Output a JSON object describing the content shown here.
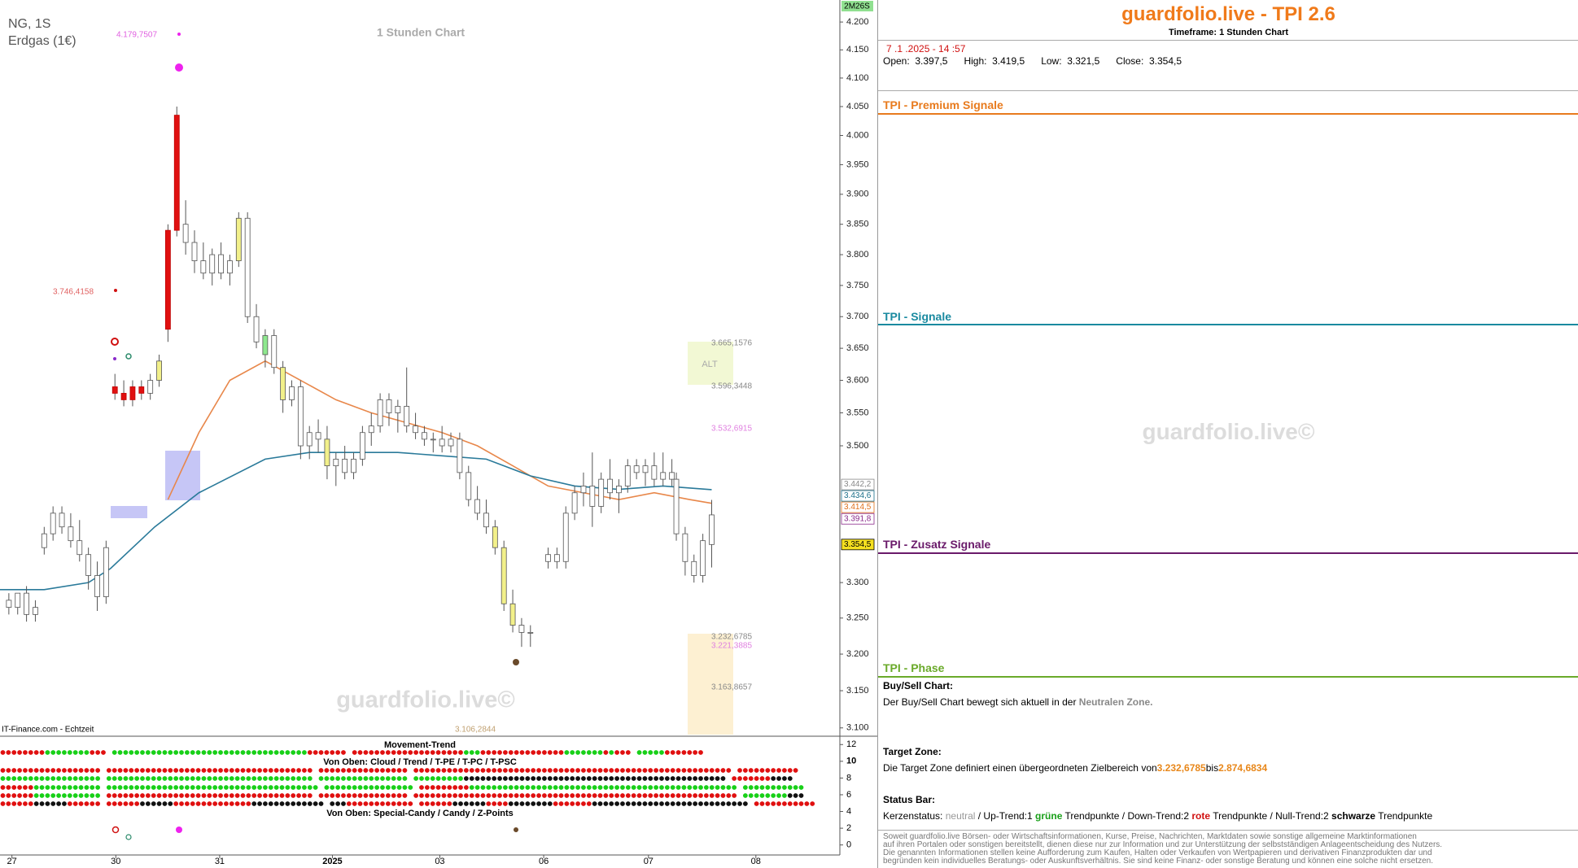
{
  "chart_data": {
    "type": "candlestick",
    "timer": "2M26S",
    "texts": [
      "NG, 1S",
      "Erdgas (1€)",
      "1 Stunden Chart",
      "4.179,7507",
      "3.746,4158",
      "3.665,1576",
      "ALT",
      "3.596,3448",
      "3.532,6915",
      "3.232,6785",
      "3.221,3885",
      "3.163,8657",
      "3.106,2844",
      "guardfolio.live©",
      "IT-Finance.com - Echtzeit"
    ],
    "log_scale": true,
    "xlim": [
      0,
      190
    ],
    "ylim": [
      3.09,
      4.24
    ],
    "xticks": [
      {
        "value": 2.7,
        "label": "27"
      },
      {
        "value": 26.2,
        "label": "30"
      },
      {
        "value": 49.7,
        "label": "31"
      },
      {
        "value": 75.2,
        "label": "2025"
      },
      {
        "value": 99.5,
        "label": "03"
      },
      {
        "value": 123,
        "label": "06"
      },
      {
        "value": 146.7,
        "label": "07"
      },
      {
        "value": 171,
        "label": "08"
      }
    ],
    "yticks": [
      {
        "value": 4.2,
        "label": "4.200"
      },
      {
        "value": 4.15,
        "label": "4.150"
      },
      {
        "value": 4.1,
        "label": "4.100"
      },
      {
        "value": 4.05,
        "label": "4.050"
      },
      {
        "value": 4.0,
        "label": "4.000"
      },
      {
        "value": 3.95,
        "label": "3.950"
      },
      {
        "value": 3.9,
        "label": "3.900"
      },
      {
        "value": 3.85,
        "label": "3.850"
      },
      {
        "value": 3.8,
        "label": "3.800"
      },
      {
        "value": 3.75,
        "label": "3.750"
      },
      {
        "value": 3.7,
        "label": "3.700"
      },
      {
        "value": 3.65,
        "label": "3.650"
      },
      {
        "value": 3.6,
        "label": "3.600"
      },
      {
        "value": 3.55,
        "label": "3.550"
      },
      {
        "value": 3.5,
        "label": "3.500"
      },
      {
        "value": 3.3,
        "label": "3.300"
      },
      {
        "value": 3.25,
        "label": "3.250"
      },
      {
        "value": 3.2,
        "label": "3.200"
      },
      {
        "value": 3.15,
        "label": "3.150"
      },
      {
        "value": 3.1,
        "label": "3.100"
      }
    ],
    "x": [
      2,
      4,
      6,
      8,
      10,
      12,
      14,
      16,
      18,
      20,
      22,
      24,
      26,
      28,
      30,
      32,
      34,
      36,
      38,
      40,
      42,
      44,
      46,
      48,
      50,
      52,
      54,
      56,
      58,
      60,
      62,
      64,
      66,
      68,
      70,
      72,
      74,
      76,
      78,
      80,
      82,
      84,
      86,
      88,
      90,
      92,
      94,
      96,
      98,
      100,
      102,
      104,
      106,
      108,
      110,
      112,
      114,
      116,
      118,
      120,
      124,
      126,
      128,
      130,
      132,
      134,
      136,
      138,
      140,
      142,
      144,
      146,
      148,
      150,
      152,
      153,
      155,
      157,
      159,
      161
    ],
    "open": [
      3.275,
      3.265,
      3.285,
      3.255,
      3.35,
      3.37,
      3.4,
      3.38,
      3.36,
      3.34,
      3.31,
      3.28,
      3.59,
      3.58,
      3.57,
      3.59,
      3.58,
      3.6,
      3.68,
      3.84,
      3.85,
      3.82,
      3.79,
      3.77,
      3.8,
      3.77,
      3.79,
      3.86,
      3.7,
      3.64,
      3.67,
      3.62,
      3.57,
      3.59,
      3.5,
      3.52,
      3.51,
      3.47,
      3.48,
      3.46,
      3.48,
      3.52,
      3.53,
      3.57,
      3.55,
      3.56,
      3.53,
      3.52,
      3.51,
      3.51,
      3.5,
      3.51,
      3.46,
      3.42,
      3.4,
      3.38,
      3.35,
      3.27,
      3.24,
      3.23,
      3.33,
      3.34,
      3.33,
      3.4,
      3.43,
      3.44,
      3.41,
      3.45,
      3.43,
      3.44,
      3.47,
      3.46,
      3.47,
      3.45,
      3.46,
      3.45,
      3.37,
      3.33,
      3.31,
      3.3975
    ],
    "high": [
      3.285,
      3.285,
      3.295,
      3.275,
      3.38,
      3.41,
      3.41,
      3.4,
      3.39,
      3.35,
      3.33,
      3.36,
      3.61,
      3.6,
      3.6,
      3.6,
      3.61,
      3.64,
      3.85,
      4.05,
      3.89,
      3.84,
      3.82,
      3.81,
      3.82,
      3.8,
      3.87,
      3.87,
      3.72,
      3.68,
      3.68,
      3.63,
      3.6,
      3.6,
      3.53,
      3.54,
      3.53,
      3.49,
      3.5,
      3.49,
      3.53,
      3.55,
      3.58,
      3.58,
      3.57,
      3.62,
      3.55,
      3.53,
      3.52,
      3.53,
      3.52,
      3.52,
      3.47,
      3.44,
      3.42,
      3.39,
      3.36,
      3.29,
      3.25,
      3.24,
      3.35,
      3.35,
      3.41,
      3.44,
      3.46,
      3.49,
      3.46,
      3.48,
      3.45,
      3.48,
      3.48,
      3.48,
      3.49,
      3.49,
      3.48,
      3.46,
      3.38,
      3.34,
      3.37,
      3.4195
    ],
    "low": [
      3.255,
      3.255,
      3.245,
      3.245,
      3.34,
      3.36,
      3.37,
      3.35,
      3.33,
      3.29,
      3.26,
      3.27,
      3.57,
      3.56,
      3.56,
      3.57,
      3.57,
      3.59,
      3.66,
      3.83,
      3.8,
      3.77,
      3.76,
      3.75,
      3.76,
      3.75,
      3.78,
      3.69,
      3.65,
      3.62,
      3.61,
      3.55,
      3.56,
      3.48,
      3.48,
      3.49,
      3.45,
      3.44,
      3.45,
      3.45,
      3.47,
      3.5,
      3.52,
      3.53,
      3.52,
      3.52,
      3.51,
      3.5,
      3.49,
      3.49,
      3.49,
      3.45,
      3.41,
      3.39,
      3.37,
      3.34,
      3.26,
      3.23,
      3.21,
      3.21,
      3.32,
      3.32,
      3.32,
      3.39,
      3.41,
      3.38,
      3.4,
      3.42,
      3.4,
      3.43,
      3.45,
      3.44,
      3.44,
      3.44,
      3.44,
      3.36,
      3.31,
      3.3,
      3.3,
      3.3215
    ],
    "close": [
      3.265,
      3.285,
      3.255,
      3.265,
      3.37,
      3.4,
      3.38,
      3.36,
      3.34,
      3.31,
      3.28,
      3.35,
      3.58,
      3.57,
      3.59,
      3.58,
      3.6,
      3.63,
      3.84,
      4.035,
      3.82,
      3.79,
      3.77,
      3.8,
      3.77,
      3.79,
      3.86,
      3.7,
      3.66,
      3.67,
      3.62,
      3.57,
      3.59,
      3.5,
      3.52,
      3.51,
      3.47,
      3.48,
      3.46,
      3.48,
      3.52,
      3.53,
      3.57,
      3.55,
      3.56,
      3.53,
      3.52,
      3.51,
      3.51,
      3.5,
      3.51,
      3.46,
      3.42,
      3.4,
      3.38,
      3.35,
      3.27,
      3.24,
      3.23,
      3.23,
      3.34,
      3.33,
      3.4,
      3.43,
      3.44,
      3.41,
      3.45,
      3.43,
      3.44,
      3.47,
      3.46,
      3.47,
      3.45,
      3.46,
      3.45,
      3.37,
      3.33,
      3.31,
      3.36,
      3.3545
    ],
    "colors": [
      "#ffffff",
      "#ffffff",
      "#ffffff",
      "#ffffff",
      "#ffffff",
      "#ffffff",
      "#ffffff",
      "#ffffff",
      "#ffffff",
      "#ffffff",
      "#ffffff",
      "#ffffff",
      "#e01010",
      "#e01010",
      "#e01010",
      "#e01010",
      "#ffffff",
      "#f2f08a",
      "#e01010",
      "#e01010",
      "#ffffff",
      "#ffffff",
      "#ffffff",
      "#ffffff",
      "#ffffff",
      "#ffffff",
      "#f2f08a",
      "#ffffff",
      "#ffffff",
      "#8ee88e",
      "#ffffff",
      "#f2f08a",
      "#ffffff",
      "#ffffff",
      "#ffffff",
      "#ffffff",
      "#f2f08a",
      "#ffffff",
      "#ffffff",
      "#ffffff",
      "#ffffff",
      "#ffffff",
      "#ffffff",
      "#ffffff",
      "#ffffff",
      "#ffffff",
      "#ffffff",
      "#ffffff",
      "#ffffff",
      "#ffffff",
      "#ffffff",
      "#ffffff",
      "#ffffff",
      "#ffffff",
      "#ffffff",
      "#f2f08a",
      "#f2f08a",
      "#f2f08a",
      "#ffffff",
      "#ffffff",
      "#ffffff",
      "#ffffff",
      "#ffffff",
      "#ffffff",
      "#ffffff",
      "#ffffff",
      "#ffffff",
      "#ffffff",
      "#ffffff",
      "#ffffff",
      "#ffffff",
      "#ffffff",
      "#ffffff",
      "#ffffff",
      "#ffffff",
      "#ffffff",
      "#ffffff",
      "#ffffff",
      "#ffffff",
      "#ffffff"
    ],
    "lines": [
      {
        "color": "#e8874a",
        "x": [
          38,
          45,
          52,
          60,
          68,
          76,
          84,
          92,
          100,
          108,
          116,
          124,
          132,
          140,
          148,
          156,
          161
        ],
        "values": [
          3.42,
          3.52,
          3.6,
          3.63,
          3.6,
          3.57,
          3.55,
          3.535,
          3.52,
          3.5,
          3.47,
          3.44,
          3.43,
          3.42,
          3.43,
          3.42,
          3.4145
        ]
      },
      {
        "color": "#2a7a9a",
        "x": [
          0,
          10,
          20,
          25,
          35,
          45,
          60,
          70,
          80,
          90,
          100,
          110,
          120,
          130,
          140,
          150,
          161
        ],
        "values": [
          3.29,
          3.29,
          3.3,
          3.32,
          3.38,
          3.43,
          3.48,
          3.49,
          3.49,
          3.49,
          3.485,
          3.48,
          3.455,
          3.44,
          3.435,
          3.44,
          3.4346
        ]
      }
    ],
    "price_tags": [
      {
        "value": 3.4422,
        "label": "3.442,2",
        "color": "#888888"
      },
      {
        "value": 3.4346,
        "label": "3.434,6",
        "color": "#1a6f8a"
      },
      {
        "value": 3.4145,
        "label": "3.414,5",
        "color": "#e0701a"
      },
      {
        "value": 3.3918,
        "label": "3.391,8",
        "color": "#8a2a8a"
      },
      {
        "value": 3.3545,
        "label": "3.354,5",
        "color": "#000000",
        "background": "#f5e020"
      }
    ],
    "indicator": {
      "ylim": [
        -1.2,
        12.9
      ],
      "yticks": [
        12,
        10,
        8,
        6,
        4,
        2,
        0
      ],
      "titles": [
        "Movement-Trend",
        "Von Oben: Cloud / Trend / T-PE / T-PC / T-PSC",
        "Von Oben: Special-Candy / Candy / Z-Points"
      ],
      "rows": [
        "rrrrrrrrggggggggrrr gggggggggggggggggggggggggggggggggggrrrrrrr rrrrrrrrrrrrrrrrrrrrgggrrrrrrrrrrrrrrrgggggggrgrrr gggggrrrrrrr",
        "rrrrrrrrrrrrrrrrrr rrrrrrrrrrrrrrrrrrrrrrrrrrrrrrrrrrrrr rrrrrrrrrrrrrrrr rrrrrrrrrrrrrrrrrrrrrrrrrrrrrrrrrrrrrrrrrrrrrrrrrrrrrrrrr rrrrrrrrrrr",
        "gggggggggggggggggg ggggggggggggggggggggggggggggggggggggg gggggggggggggggg gggggggggkkkkkkkkkkkkkkkkkkkkkkkkkkkkkkkkkkkkkkkkkkkkkkk rrrrrrrkkkk",
        "rrrrrrgggggggggggg gggggggggggggggggggggggggggggggggggggg gggggggggggggggg rrrrrrrrrgggggggggggggggggggggggggggggggggggggggggggggggg ggggggggggg",
        "rrrrrrgggggggggggg rrrrrrrrrrrrrrrrrrrrrrrrrrrrrrrrrrrrr rrrrrrrrrrrrrrrr rrrrrrrrrrrrrrrrrrrrrrrrrrrrrrrrrrrrrrrrrrrrrrrrrrrrrrrrrr ggggggggkkk",
        "rrrrrrkkkkkkrrrrrr rrrrrrkkkkkkrrrrrrrrrrrrrrkkkkkkkkkkkkk kkkrrrrrrrrrrrr rrrrrrkkkkkkrrrrkkkkkkkkrrrrrrrkkkkkkkkkkkkkkkkkkkkkkkkkkkk rrrrrrrrrrr"
      ]
    }
  },
  "panel": {
    "title": "guardfolio.live - TPI 2.6",
    "timeframe": "Timeframe: 1 Stunden Chart",
    "datetime": "7 .1 .2025 - 14 :57",
    "ohlc": [
      {
        "label": "Open:",
        "value": "3.397,5"
      },
      {
        "label": "High:",
        "value": "3.419,5"
      },
      {
        "label": "Low:",
        "value": "3.321,5"
      },
      {
        "label": "Close:",
        "value": "3.354,5"
      }
    ],
    "sections": [
      "TPI - Premium Signale",
      "TPI - Signale",
      "TPI - Zusatz Signale",
      "TPI - Phase"
    ],
    "watermark": "guardfolio.live©",
    "buy_sell": {
      "heading": "Buy/Sell Chart:",
      "text": "Der Buy/Sell Chart bewegt sich aktuell in der",
      "zone": "Neutralen Zone."
    },
    "target": {
      "heading": "Target Zone:",
      "text": "Die Target Zone definiert einen übergeordneten Zielbereich von",
      "from": "3.232,6785",
      "to_word": "bis",
      "to": "2.874,6834"
    },
    "status": {
      "heading": "Status Bar:",
      "parts": [
        "Kerzenstatus:",
        "neutral",
        "/ Up-Trend:1",
        "grüne",
        "Trendpunkte",
        "/ Down-Trend:2",
        "rote",
        "Trendpunkte / Null-Trend:2",
        "schwarze",
        "Trendpunkte"
      ]
    },
    "disclaimer": [
      "Soweit guardfolio.live Börsen- oder Wirtschaftsinformationen, Kurse, Preise, Nachrichten, Marktdaten sowie sonstige allgemeine Marktinformationen",
      "auf ihren Portalen oder sonstigen bereitstellt, dienen diese nur zur Information und zur Unterstützung der selbstständigen Anlageentscheidung des Nutzers.",
      "Die genannten Informationen stellen keine Aufforderung zum Kaufen, Halten oder Verkaufen von Wertpapieren und derivativen Finanzprodukten dar und",
      "begründen kein individuelles Beratungs- oder Auskunftsverhältnis. Sie sind keine Finanz- oder sonstige Beratung und können eine solche nicht ersetzen."
    ]
  }
}
